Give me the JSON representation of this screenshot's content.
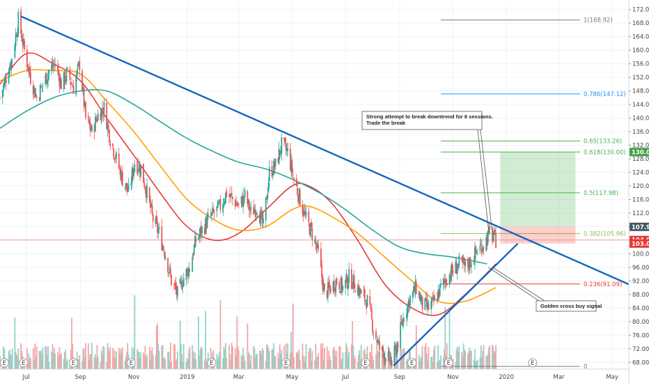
{
  "chart_data": {
    "type": "line",
    "y_axis": {
      "ylim": [
        66,
        174
      ],
      "ticks": [
        68,
        72,
        76,
        80,
        84,
        88,
        92,
        96,
        100,
        104,
        108,
        112,
        116,
        120,
        124,
        128,
        132,
        136,
        140,
        144,
        148,
        152,
        156,
        160,
        164,
        168,
        172
      ],
      "tick_labels": [
        "68.00",
        "72.00",
        "76.00",
        "80.00",
        "84.00",
        "88.00",
        "92.00",
        "96.00",
        "100.00",
        "104.00",
        "108.00",
        "112.00",
        "116.00",
        "120.00",
        "124.00",
        "128.00",
        "132.00",
        "136.00",
        "140.00",
        "144.00",
        "148.00",
        "152.00",
        "156.00",
        "160.00",
        "164.00",
        "168.00",
        "172.00"
      ]
    },
    "x_axis": {
      "xlim": [
        "2018-06-01",
        "2020-05-20"
      ],
      "ticks": [
        {
          "date": "2018-07-01",
          "label": "Jul"
        },
        {
          "date": "2018-09-01",
          "label": "Sep"
        },
        {
          "date": "2018-11-01",
          "label": "Nov"
        },
        {
          "date": "2019-01-01",
          "label": "2019"
        },
        {
          "date": "2019-03-01",
          "label": "Mar"
        },
        {
          "date": "2019-05-01",
          "label": "May"
        },
        {
          "date": "2019-07-01",
          "label": "Jul"
        },
        {
          "date": "2019-09-01",
          "label": "Sep"
        },
        {
          "date": "2019-11-01",
          "label": "Nov"
        },
        {
          "date": "2020-01-01",
          "label": "2020"
        },
        {
          "date": "2020-03-01",
          "label": "Mar"
        },
        {
          "date": "2020-05-01",
          "label": "May"
        }
      ]
    },
    "price_series": [
      {
        "date": "2018-06-01",
        "close": 146
      },
      {
        "date": "2018-06-08",
        "close": 152
      },
      {
        "date": "2018-06-15",
        "close": 158
      },
      {
        "date": "2018-06-22",
        "close": 169
      },
      {
        "date": "2018-06-29",
        "close": 160
      },
      {
        "date": "2018-07-06",
        "close": 152
      },
      {
        "date": "2018-07-13",
        "close": 146
      },
      {
        "date": "2018-07-20",
        "close": 150
      },
      {
        "date": "2018-07-27",
        "close": 154
      },
      {
        "date": "2018-08-03",
        "close": 156
      },
      {
        "date": "2018-08-10",
        "close": 150
      },
      {
        "date": "2018-08-17",
        "close": 153
      },
      {
        "date": "2018-08-24",
        "close": 149
      },
      {
        "date": "2018-08-31",
        "close": 156
      },
      {
        "date": "2018-09-07",
        "close": 140
      },
      {
        "date": "2018-09-14",
        "close": 136
      },
      {
        "date": "2018-09-21",
        "close": 141
      },
      {
        "date": "2018-09-28",
        "close": 143
      },
      {
        "date": "2018-10-05",
        "close": 134
      },
      {
        "date": "2018-10-12",
        "close": 128
      },
      {
        "date": "2018-10-19",
        "close": 122
      },
      {
        "date": "2018-10-26",
        "close": 118
      },
      {
        "date": "2018-11-02",
        "close": 127
      },
      {
        "date": "2018-11-09",
        "close": 125
      },
      {
        "date": "2018-11-16",
        "close": 118
      },
      {
        "date": "2018-11-23",
        "close": 110
      },
      {
        "date": "2018-11-30",
        "close": 106
      },
      {
        "date": "2018-12-07",
        "close": 100
      },
      {
        "date": "2018-12-14",
        "close": 92
      },
      {
        "date": "2018-12-21",
        "close": 88
      },
      {
        "date": "2018-12-28",
        "close": 93
      },
      {
        "date": "2019-01-04",
        "close": 96
      },
      {
        "date": "2019-01-11",
        "close": 104
      },
      {
        "date": "2019-01-18",
        "close": 107
      },
      {
        "date": "2019-01-25",
        "close": 110
      },
      {
        "date": "2019-02-01",
        "close": 112
      },
      {
        "date": "2019-02-08",
        "close": 114
      },
      {
        "date": "2019-02-15",
        "close": 118
      },
      {
        "date": "2019-02-22",
        "close": 116
      },
      {
        "date": "2019-03-01",
        "close": 114
      },
      {
        "date": "2019-03-08",
        "close": 117
      },
      {
        "date": "2019-03-15",
        "close": 112
      },
      {
        "date": "2019-03-22",
        "close": 114
      },
      {
        "date": "2019-03-29",
        "close": 108
      },
      {
        "date": "2019-04-05",
        "close": 124
      },
      {
        "date": "2019-04-12",
        "close": 126
      },
      {
        "date": "2019-04-19",
        "close": 132
      },
      {
        "date": "2019-04-26",
        "close": 130
      },
      {
        "date": "2019-05-03",
        "close": 122
      },
      {
        "date": "2019-05-10",
        "close": 116
      },
      {
        "date": "2019-05-17",
        "close": 110
      },
      {
        "date": "2019-05-24",
        "close": 106
      },
      {
        "date": "2019-05-31",
        "close": 100
      },
      {
        "date": "2019-06-07",
        "close": 88
      },
      {
        "date": "2019-06-14",
        "close": 90
      },
      {
        "date": "2019-06-21",
        "close": 92
      },
      {
        "date": "2019-06-28",
        "close": 90
      },
      {
        "date": "2019-07-05",
        "close": 93
      },
      {
        "date": "2019-07-12",
        "close": 91
      },
      {
        "date": "2019-07-19",
        "close": 88
      },
      {
        "date": "2019-07-26",
        "close": 86
      },
      {
        "date": "2019-08-02",
        "close": 78
      },
      {
        "date": "2019-08-09",
        "close": 72
      },
      {
        "date": "2019-08-16",
        "close": 70
      },
      {
        "date": "2019-08-23",
        "close": 68
      },
      {
        "date": "2019-08-30",
        "close": 74
      },
      {
        "date": "2019-09-06",
        "close": 82
      },
      {
        "date": "2019-09-13",
        "close": 87
      },
      {
        "date": "2019-09-20",
        "close": 90
      },
      {
        "date": "2019-09-27",
        "close": 85
      },
      {
        "date": "2019-10-04",
        "close": 84
      },
      {
        "date": "2019-10-11",
        "close": 86
      },
      {
        "date": "2019-10-18",
        "close": 90
      },
      {
        "date": "2019-10-25",
        "close": 93
      },
      {
        "date": "2019-11-01",
        "close": 95
      },
      {
        "date": "2019-11-08",
        "close": 97
      },
      {
        "date": "2019-11-15",
        "close": 96
      },
      {
        "date": "2019-11-22",
        "close": 98
      },
      {
        "date": "2019-11-29",
        "close": 101
      },
      {
        "date": "2019-12-06",
        "close": 103
      },
      {
        "date": "2019-12-13",
        "close": 106
      },
      {
        "date": "2019-12-20",
        "close": 104
      }
    ],
    "moving_averages": [
      {
        "color": "#e53935",
        "points": [
          {
            "date": "2018-06-01",
            "value": 150
          },
          {
            "date": "2018-07-01",
            "value": 159
          },
          {
            "date": "2018-08-01",
            "value": 156
          },
          {
            "date": "2018-09-01",
            "value": 151
          },
          {
            "date": "2018-10-01",
            "value": 140
          },
          {
            "date": "2018-11-01",
            "value": 129
          },
          {
            "date": "2018-12-01",
            "value": 118
          },
          {
            "date": "2019-01-01",
            "value": 108
          },
          {
            "date": "2019-02-01",
            "value": 104
          },
          {
            "date": "2019-03-01",
            "value": 106
          },
          {
            "date": "2019-04-01",
            "value": 113
          },
          {
            "date": "2019-05-01",
            "value": 120
          },
          {
            "date": "2019-05-20",
            "value": 120
          },
          {
            "date": "2019-06-15",
            "value": 115
          },
          {
            "date": "2019-07-15",
            "value": 104
          },
          {
            "date": "2019-08-15",
            "value": 91
          },
          {
            "date": "2019-09-15",
            "value": 84
          },
          {
            "date": "2019-10-15",
            "value": 82
          },
          {
            "date": "2019-11-15",
            "value": 88
          },
          {
            "date": "2019-12-20",
            "value": 97
          }
        ]
      },
      {
        "color": "#ffa000",
        "points": [
          {
            "date": "2018-06-01",
            "value": 151
          },
          {
            "date": "2018-07-01",
            "value": 154
          },
          {
            "date": "2018-08-01",
            "value": 154
          },
          {
            "date": "2018-09-01",
            "value": 153
          },
          {
            "date": "2018-10-01",
            "value": 145
          },
          {
            "date": "2018-11-01",
            "value": 136
          },
          {
            "date": "2018-12-01",
            "value": 126
          },
          {
            "date": "2019-01-01",
            "value": 116
          },
          {
            "date": "2019-02-01",
            "value": 110
          },
          {
            "date": "2019-03-01",
            "value": 107
          },
          {
            "date": "2019-04-01",
            "value": 108
          },
          {
            "date": "2019-05-01",
            "value": 113
          },
          {
            "date": "2019-05-20",
            "value": 114
          },
          {
            "date": "2019-06-15",
            "value": 111
          },
          {
            "date": "2019-07-15",
            "value": 106
          },
          {
            "date": "2019-08-15",
            "value": 99
          },
          {
            "date": "2019-09-15",
            "value": 92
          },
          {
            "date": "2019-10-15",
            "value": 86
          },
          {
            "date": "2019-11-15",
            "value": 86
          },
          {
            "date": "2019-12-20",
            "value": 90
          }
        ]
      },
      {
        "color": "#26a69a",
        "points": [
          {
            "date": "2018-06-01",
            "value": 137
          },
          {
            "date": "2018-07-01",
            "value": 142
          },
          {
            "date": "2018-08-01",
            "value": 146
          },
          {
            "date": "2018-09-01",
            "value": 148
          },
          {
            "date": "2018-10-01",
            "value": 148
          },
          {
            "date": "2018-11-01",
            "value": 144
          },
          {
            "date": "2018-12-01",
            "value": 139
          },
          {
            "date": "2019-01-01",
            "value": 134
          },
          {
            "date": "2019-02-01",
            "value": 130
          },
          {
            "date": "2019-03-01",
            "value": 127
          },
          {
            "date": "2019-04-01",
            "value": 125
          },
          {
            "date": "2019-05-01",
            "value": 122
          },
          {
            "date": "2019-06-01",
            "value": 118
          },
          {
            "date": "2019-07-01",
            "value": 113
          },
          {
            "date": "2019-08-01",
            "value": 107
          },
          {
            "date": "2019-09-01",
            "value": 102
          },
          {
            "date": "2019-10-01",
            "value": 100
          },
          {
            "date": "2019-11-01",
            "value": 99
          },
          {
            "date": "2019-12-10",
            "value": 97
          }
        ]
      }
    ],
    "trendlines": [
      {
        "color": "#1565c0",
        "from": {
          "date": "2018-06-25",
          "value": 170
        },
        "to": {
          "date": "2020-05-20",
          "value": 91
        }
      },
      {
        "color": "#1565c0",
        "from": {
          "date": "2019-08-25",
          "value": 67
        },
        "to": {
          "date": "2020-01-14",
          "value": 103
        }
      }
    ],
    "fibonacci_levels": [
      {
        "ratio": "1",
        "price": "168.92",
        "value": 168.92,
        "color": "#787b86"
      },
      {
        "ratio": "0.786",
        "price": "147.12",
        "value": 147.12,
        "color": "#2196f3"
      },
      {
        "ratio": "0.65",
        "price": "133.26",
        "value": 133.26,
        "color": "#4caf50"
      },
      {
        "ratio": "0.618",
        "price": "130.00",
        "value": 130.0,
        "color": "#4caf50"
      },
      {
        "ratio": "0.5",
        "price": "117.98",
        "value": 117.98,
        "color": "#4caf50"
      },
      {
        "ratio": "0.382",
        "price": "105.96",
        "value": 105.96,
        "color": "#8bc34a"
      },
      {
        "ratio": "0.236",
        "price": "91.09",
        "value": 91.09,
        "color": "#e53935"
      },
      {
        "ratio": "0",
        "price": "",
        "value": 66.8,
        "color": "#787b86"
      }
    ],
    "fib_label_format": "{ratio}({price})",
    "position_box": {
      "entry": 104.05,
      "stop": 103.0,
      "target": 130.0,
      "stop_top": 108.0,
      "from": "2019-12-25",
      "to": "2020-03-20"
    },
    "price_tags": [
      {
        "value": 130.0,
        "label": "130.00",
        "color": "#43a047"
      },
      {
        "value": 107.93,
        "label": "107.93",
        "color": "#455a64"
      },
      {
        "value": 104.05,
        "label": "104.05",
        "color": "#e53935"
      },
      {
        "value": 103.0,
        "label": "103.00",
        "color": "#e53935"
      }
    ],
    "current_price_line": {
      "value": 104.05,
      "color": "#ef9a9a"
    },
    "annotations": [
      {
        "id": "downtrend",
        "lines": [
          "Strong attempt to break downtrend for 8 sessions.",
          "Trade the break"
        ],
        "points_to": {
          "date": "2019-12-14",
          "value": 107
        }
      },
      {
        "id": "golden",
        "lines": [
          "Golden cross buy signal"
        ],
        "points_to": {
          "date": "2019-12-05",
          "value": 96
        }
      }
    ],
    "earnings_markers": {
      "label": "E",
      "dates": [
        "2018-06-06",
        "2018-06-28",
        "2018-08-24",
        "2018-10-29",
        "2019-01-29",
        "2019-04-24",
        "2019-07-24",
        "2019-09-15",
        "2019-10-27",
        "2020-01-31"
      ]
    }
  }
}
